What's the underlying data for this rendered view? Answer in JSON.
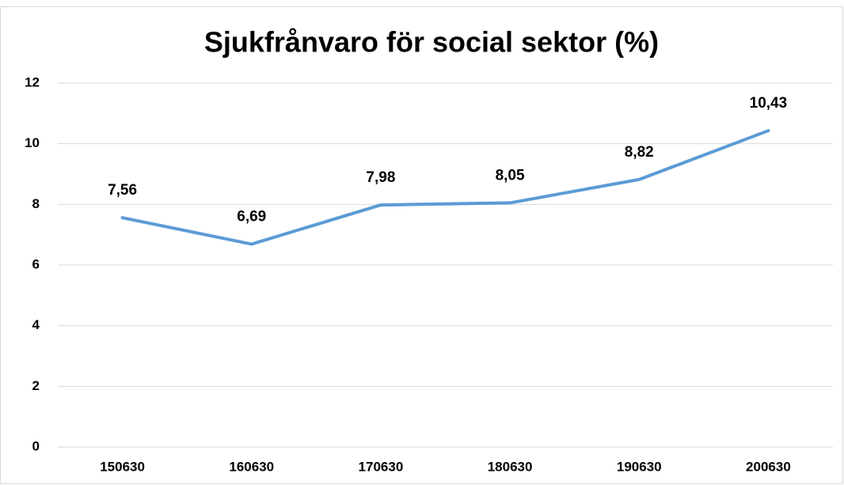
{
  "chart_data": {
    "type": "line",
    "title": "Sjukfrånvaro för social sektor (%)",
    "categories": [
      "150630",
      "160630",
      "170630",
      "180630",
      "190630",
      "200630"
    ],
    "values": [
      7.56,
      6.69,
      7.98,
      8.05,
      8.82,
      10.43
    ],
    "value_labels": [
      "7,56",
      "6,69",
      "7,98",
      "8,05",
      "8,82",
      "10,43"
    ],
    "color": "#5b9bd5",
    "ylim": [
      0,
      12
    ],
    "yticks": [
      0,
      2,
      4,
      6,
      8,
      10,
      12
    ],
    "grid": true
  }
}
